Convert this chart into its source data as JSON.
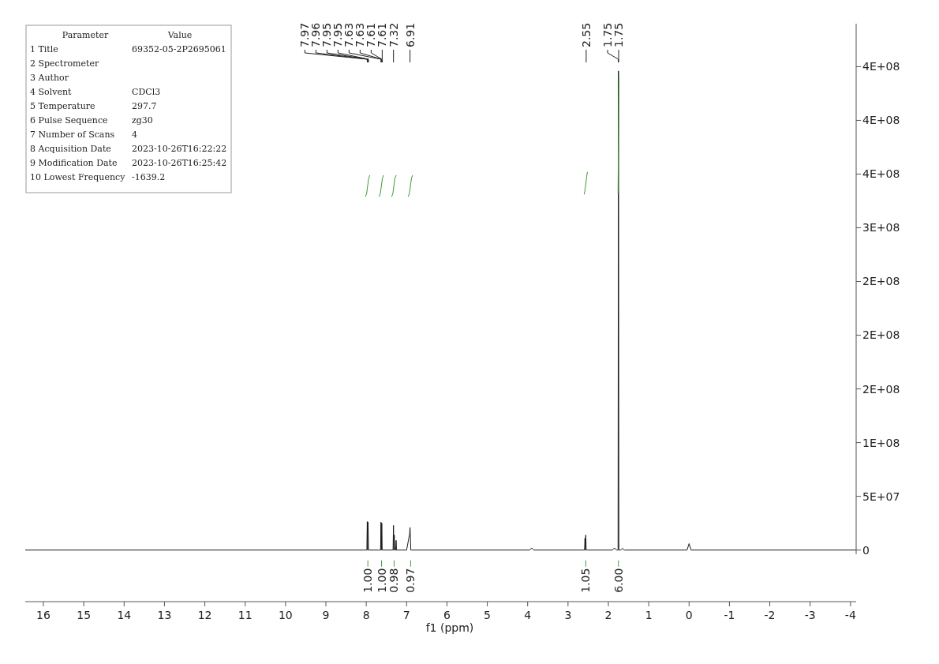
{
  "chart_data": {
    "type": "line",
    "xlabel": "f1 (ppm)",
    "xlim": [
      16.45,
      -4.14
    ],
    "xticks": [
      16,
      15,
      14,
      13,
      12,
      11,
      10,
      9,
      8,
      7,
      6,
      5,
      4,
      3,
      2,
      1,
      0,
      -1,
      -2,
      -3,
      -4
    ],
    "ylim": [
      -48000000,
      490000000
    ],
    "yticks": [
      0,
      {
        "value": 50000000,
        "label": "5E+07"
      },
      {
        "value": 100000000,
        "label": "1E+08"
      },
      {
        "value": 150000000,
        "label": "2E+08"
      },
      {
        "value": 200000000,
        "label": "2E+08"
      },
      {
        "value": 250000000,
        "label": "2E+08"
      },
      {
        "value": 300000000,
        "label": "3E+08"
      },
      {
        "value": 350000000,
        "label": "4E+08"
      },
      {
        "value": 400000000,
        "label": "4E+08"
      },
      {
        "value": 450000000,
        "label": "4E+08"
      }
    ],
    "grid": false,
    "marker": "none",
    "line_style": "solid",
    "series": [
      {
        "color": "#1a1a1a",
        "x": [
          16.45,
          8.05,
          7.985,
          7.975,
          7.965,
          7.955,
          7.945,
          7.7,
          7.645,
          7.635,
          7.625,
          7.615,
          7.605,
          7.4,
          7.335,
          7.325,
          7.315,
          7.305,
          7.295,
          7.27,
          7.26,
          7.25,
          7.0,
          6.925,
          6.915,
          6.905,
          6.895,
          6.885,
          6.87,
          3.95,
          3.9,
          3.85,
          2.65,
          2.59,
          2.58,
          2.57,
          2.56,
          2.55,
          2.54,
          1.9,
          1.85,
          1.8,
          1.76,
          1.75,
          1.74,
          1.7,
          1.65,
          1.6,
          0.05,
          0.0,
          -0.05,
          -4.14
        ],
        "values": [
          0,
          0,
          0,
          26500000,
          0,
          26000000,
          0,
          0,
          0,
          26000000,
          0,
          25000000,
          0,
          0,
          0,
          23000000,
          0,
          14000000,
          0,
          0,
          9000000,
          0,
          0,
          15000000,
          21000000,
          12000000,
          0,
          0,
          0,
          0,
          2000000,
          0,
          0,
          0,
          11000000,
          0,
          14000000,
          0,
          0,
          0,
          2000000,
          0,
          0,
          446000000,
          0,
          0,
          1500000,
          0,
          0,
          6000000,
          0,
          0
        ]
      },
      {
        "color": "#3c9a3c",
        "x": [
          8.02,
          7.99,
          7.94,
          7.91,
          null,
          7.68,
          7.65,
          7.6,
          7.57,
          null,
          7.37,
          7.34,
          7.29,
          7.26,
          null,
          6.96,
          6.93,
          6.88,
          6.85,
          null,
          2.6,
          2.58,
          2.54,
          2.52,
          null,
          1.76,
          1.74
        ],
        "values": [
          329000000,
          332000000,
          346000000,
          349000000,
          null,
          329000000,
          332000000,
          346000000,
          349000000,
          null,
          329000000,
          332000000,
          346000000,
          349000000,
          null,
          329000000,
          332000000,
          346000000,
          349000000,
          null,
          331000000,
          335000000,
          347000000,
          352000000,
          null,
          332000000,
          442000000
        ]
      }
    ],
    "annotations": [
      "Parameter\tValue",
      "1 Title\t69352-05-2P2695061",
      "2 Spectrometer",
      "3 Author",
      "4 Solvent\tCDCl3",
      "5 Temperature\t297.7",
      "6 Pulse Sequence\tzg30",
      "7 Number of Scans\t4",
      "8 Acquisition Date\t2023-10-26T16:22:22",
      "9 Modification Date\t2023-10-26T16:25:42",
      "10 Lowest Frequency\t-1639.2",
      {
        "text": "7.97",
        "x": 7.975
      },
      {
        "text": "7.96",
        "x": 7.965
      },
      {
        "text": "7.95",
        "x": 7.955
      },
      {
        "text": "7.95",
        "x": 7.945
      },
      {
        "text": "7.63",
        "x": 7.635
      },
      {
        "text": "7.63",
        "x": 7.625
      },
      {
        "text": "7.61",
        "x": 7.615
      },
      {
        "text": "7.61",
        "x": 7.605
      },
      {
        "text": "7.32",
        "x": 7.325
      },
      {
        "text": "6.91",
        "x": 6.915
      },
      {
        "text": "2.55",
        "x": 2.55
      },
      {
        "text": "1.75",
        "x": 1.755
      },
      {
        "text": "1.75",
        "x": 1.745
      },
      {
        "text": "1.00",
        "x": 7.96,
        "y": 0
      },
      {
        "text": "1.00",
        "x": 7.62,
        "y": 0
      },
      {
        "text": "0.98",
        "x": 7.31,
        "y": 0
      },
      {
        "text": "0.97",
        "x": 6.9,
        "y": 0
      },
      {
        "text": "1.05",
        "x": 2.56,
        "y": 0
      },
      {
        "text": "6.00",
        "x": 1.75,
        "y": 0
      }
    ]
  }
}
